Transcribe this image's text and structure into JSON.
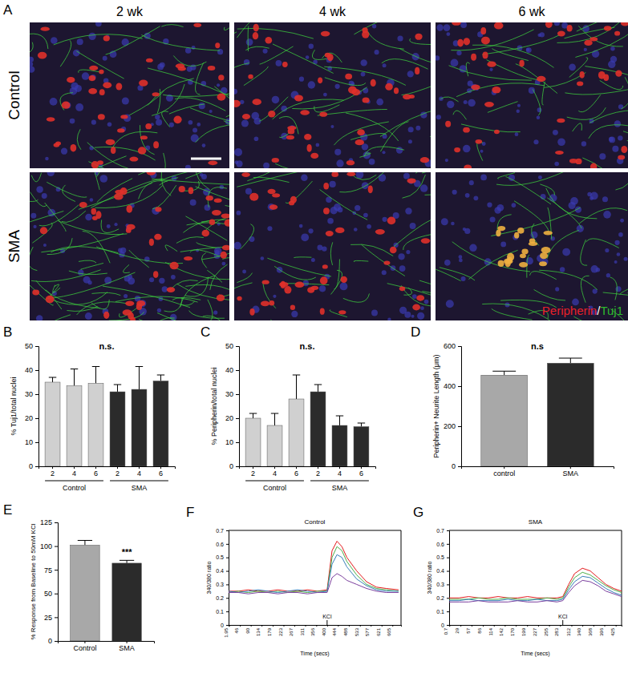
{
  "panel_a": {
    "panel_label": "A",
    "columns": [
      "2 wk",
      "4 wk",
      "6 wk"
    ],
    "rows": [
      "Control",
      "SMA"
    ],
    "legend": [
      {
        "text": "Peripherin",
        "color": "#e8202a"
      },
      {
        "text": "/",
        "color": "#ffffff"
      },
      {
        "text": "Tuj1",
        "color": "#2eb82e"
      }
    ]
  },
  "chart_data": [
    {
      "type": "bar",
      "panel_label": "B",
      "y_label": "% Tuj1/total nuclei",
      "categories": [
        "2",
        "4",
        "6",
        "2",
        "4",
        "6"
      ],
      "group_labels": [
        "Control",
        "SMA"
      ],
      "values": [
        35,
        33.5,
        34.5,
        31,
        32,
        35.5
      ],
      "errors": [
        2,
        7,
        7,
        3,
        9.5,
        2.5
      ],
      "colors": [
        "#d0d0d0",
        "#d0d0d0",
        "#d0d0d0",
        "#2b2b2b",
        "#2b2b2b",
        "#2b2b2b"
      ],
      "ylim": [
        0,
        50
      ],
      "yticks": [
        0,
        10,
        20,
        30,
        40,
        50
      ],
      "annotations": [
        {
          "text": "n.s."
        }
      ]
    },
    {
      "type": "bar",
      "panel_label": "C",
      "y_label": "% Peripherin/total nuclei",
      "categories": [
        "2",
        "4",
        "6",
        "2",
        "4",
        "6"
      ],
      "group_labels": [
        "Control",
        "SMA"
      ],
      "values": [
        20,
        17,
        28,
        31,
        17,
        16.5
      ],
      "errors": [
        2,
        5,
        10,
        3,
        4,
        1.5
      ],
      "colors": [
        "#d0d0d0",
        "#d0d0d0",
        "#d0d0d0",
        "#2b2b2b",
        "#2b2b2b",
        "#2b2b2b"
      ],
      "ylim": [
        0,
        50
      ],
      "yticks": [
        0,
        10,
        20,
        30,
        40,
        50
      ],
      "annotations": [
        {
          "text": "n.s."
        }
      ]
    },
    {
      "type": "bar",
      "panel_label": "D",
      "y_label": "Peripherin+ Neurite Length (μm)",
      "categories": [
        "control",
        "SMA"
      ],
      "values": [
        455,
        515
      ],
      "errors": [
        20,
        25
      ],
      "colors": [
        "#a8a8a8",
        "#2b2b2b"
      ],
      "ylim": [
        0,
        600
      ],
      "yticks": [
        0,
        200,
        400,
        600
      ],
      "annotations": [
        {
          "text": "n.s"
        }
      ]
    },
    {
      "type": "bar",
      "panel_label": "E",
      "y_label": "% Response from Baseline to 50mM KCl",
      "categories": [
        "Control",
        "SMA"
      ],
      "values": [
        101,
        82
      ],
      "errors": [
        5,
        3
      ],
      "colors": [
        "#a8a8a8",
        "#2b2b2b"
      ],
      "ylim": [
        0,
        125
      ],
      "yticks": [
        0,
        25,
        50,
        75,
        100,
        125
      ],
      "annotations": [
        {
          "text": "***",
          "category": "SMA"
        }
      ]
    },
    {
      "type": "line",
      "panel_label": "F",
      "title": "Control",
      "x_label": "Time (secs)",
      "y_label": "340/380 ratio",
      "x": [
        0,
        40,
        80,
        120,
        160,
        200,
        240,
        280,
        320,
        360,
        400,
        420,
        440,
        460,
        480,
        520,
        560,
        600,
        640,
        690
      ],
      "series": [
        {
          "color": "#e41a1c",
          "values": [
            0.25,
            0.25,
            0.26,
            0.25,
            0.25,
            0.26,
            0.25,
            0.25,
            0.26,
            0.25,
            0.26,
            0.55,
            0.62,
            0.58,
            0.5,
            0.4,
            0.32,
            0.28,
            0.27,
            0.26
          ]
        },
        {
          "color": "#4daf4a",
          "values": [
            0.24,
            0.25,
            0.24,
            0.25,
            0.24,
            0.25,
            0.24,
            0.25,
            0.24,
            0.25,
            0.25,
            0.5,
            0.58,
            0.55,
            0.47,
            0.37,
            0.3,
            0.27,
            0.26,
            0.25
          ]
        },
        {
          "color": "#377eb8",
          "values": [
            0.25,
            0.24,
            0.25,
            0.26,
            0.25,
            0.24,
            0.25,
            0.26,
            0.25,
            0.24,
            0.25,
            0.45,
            0.52,
            0.5,
            0.43,
            0.34,
            0.29,
            0.26,
            0.25,
            0.25
          ]
        },
        {
          "color": "#7b3f9e",
          "values": [
            0.24,
            0.24,
            0.23,
            0.24,
            0.24,
            0.23,
            0.24,
            0.24,
            0.23,
            0.24,
            0.24,
            0.35,
            0.38,
            0.36,
            0.33,
            0.3,
            0.27,
            0.25,
            0.24,
            0.24
          ]
        }
      ],
      "xlim": [
        0,
        700
      ],
      "xticks": [
        1.95,
        46,
        90,
        134,
        179,
        223,
        267,
        311,
        356,
        400,
        444,
        488,
        533,
        577,
        621,
        665
      ],
      "ylim": [
        0,
        0.7
      ],
      "yticks": [
        0,
        0.1,
        0.2,
        0.3,
        0.4,
        0.5,
        0.6,
        0.7
      ],
      "annotations": [
        {
          "text": "KCl",
          "x": 400
        }
      ]
    },
    {
      "type": "line",
      "panel_label": "G",
      "title": "SMA",
      "x_label": "Time (secs)",
      "y_label": "340/380 ratio",
      "x": [
        0,
        25,
        50,
        75,
        100,
        125,
        150,
        175,
        200,
        225,
        250,
        275,
        290,
        305,
        320,
        340,
        360,
        380,
        400,
        420,
        440
      ],
      "series": [
        {
          "color": "#e41a1c",
          "values": [
            0.2,
            0.2,
            0.21,
            0.2,
            0.2,
            0.21,
            0.2,
            0.2,
            0.21,
            0.2,
            0.2,
            0.2,
            0.21,
            0.3,
            0.38,
            0.42,
            0.4,
            0.35,
            0.3,
            0.27,
            0.25
          ]
        },
        {
          "color": "#4daf4a",
          "values": [
            0.19,
            0.19,
            0.19,
            0.2,
            0.19,
            0.19,
            0.2,
            0.19,
            0.19,
            0.19,
            0.2,
            0.19,
            0.2,
            0.28,
            0.35,
            0.39,
            0.37,
            0.33,
            0.29,
            0.26,
            0.24
          ]
        },
        {
          "color": "#377eb8",
          "values": [
            0.18,
            0.18,
            0.19,
            0.18,
            0.18,
            0.18,
            0.19,
            0.18,
            0.18,
            0.19,
            0.18,
            0.18,
            0.19,
            0.26,
            0.32,
            0.36,
            0.35,
            0.31,
            0.27,
            0.24,
            0.22
          ]
        },
        {
          "color": "#7b3f9e",
          "values": [
            0.17,
            0.17,
            0.17,
            0.18,
            0.17,
            0.17,
            0.17,
            0.18,
            0.17,
            0.17,
            0.18,
            0.17,
            0.18,
            0.24,
            0.29,
            0.33,
            0.32,
            0.29,
            0.25,
            0.23,
            0.21
          ]
        }
      ],
      "xlim": [
        0,
        440
      ],
      "xticks": [
        0.7,
        29,
        57,
        86,
        114,
        142,
        170,
        199,
        227,
        255,
        283,
        312,
        340,
        368,
        396,
        425
      ],
      "ylim": [
        0,
        0.7
      ],
      "yticks": [
        0,
        0.1,
        0.2,
        0.3,
        0.4,
        0.5,
        0.6,
        0.7
      ],
      "annotations": [
        {
          "text": "KCl",
          "x": 290
        }
      ]
    }
  ]
}
